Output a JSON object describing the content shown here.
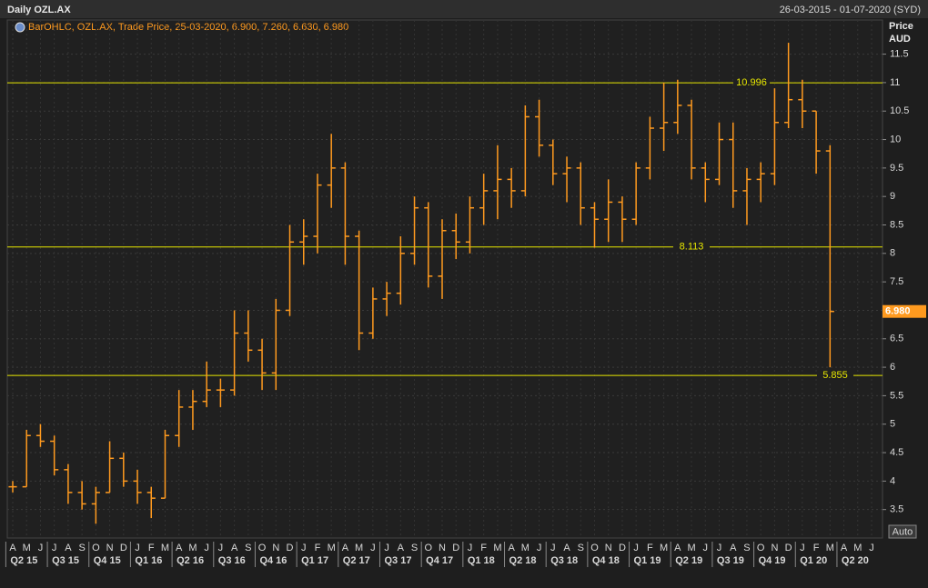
{
  "chart_data": {
    "type": "ohlc",
    "title": "Daily OZL.AX",
    "date_range": "26-03-2015 - 01-07-2020 (SYD)",
    "legend_text": "BarOHLC, OZL.AX, Trade Price, 25-03-2020, 6.900, 7.260, 6.630, 6.980",
    "y_label_line1": "Price",
    "y_label_line2": "AUD",
    "auto_button": "Auto",
    "color": "#ff9a1f",
    "categories": [
      "A",
      "M",
      "J",
      "J",
      "A",
      "S",
      "O",
      "N",
      "D",
      "J",
      "F",
      "M",
      "A",
      "M",
      "J",
      "J",
      "A",
      "S",
      "O",
      "N",
      "D",
      "J",
      "F",
      "M",
      "A",
      "M",
      "J",
      "J",
      "A",
      "S",
      "O",
      "N",
      "D",
      "J",
      "F",
      "M",
      "A",
      "M",
      "J",
      "J",
      "A",
      "S",
      "O",
      "N",
      "D",
      "J",
      "F",
      "M",
      "A",
      "M",
      "J",
      "J",
      "A",
      "S",
      "O",
      "N",
      "D",
      "J",
      "F",
      "M",
      "A",
      "M",
      "J"
    ],
    "quarters": [
      "Q2 15",
      "Q3 15",
      "Q4 15",
      "Q1 16",
      "Q2 16",
      "Q3 16",
      "Q4 16",
      "Q1 17",
      "Q2 17",
      "Q3 17",
      "Q4 17",
      "Q1 18",
      "Q2 18",
      "Q3 18",
      "Q4 18",
      "Q1 19",
      "Q2 19",
      "Q3 19",
      "Q4 19",
      "Q1 20",
      "Q2 20"
    ],
    "open": [
      3.9,
      3.9,
      4.8,
      4.7,
      4.2,
      3.8,
      3.6,
      3.8,
      4.4,
      4.0,
      3.8,
      3.7,
      4.8,
      5.3,
      5.4,
      5.6,
      5.6,
      6.6,
      6.3,
      5.9,
      7.0,
      8.2,
      8.3,
      9.2,
      9.5,
      8.3,
      6.6,
      7.2,
      7.3,
      8.0,
      8.8,
      7.6,
      8.4,
      8.2,
      8.8,
      9.1,
      9.3,
      9.1,
      10.4,
      9.9,
      9.4,
      9.5,
      8.8,
      8.6,
      8.9,
      8.6,
      9.5,
      10.2,
      10.3,
      10.6,
      9.5,
      9.3,
      10.0,
      9.1,
      9.3,
      9.4,
      10.3,
      10.7,
      10.5,
      9.8,
      null,
      null,
      null
    ],
    "high": [
      4.0,
      4.9,
      5.0,
      4.8,
      4.3,
      4.0,
      3.9,
      4.7,
      4.5,
      4.2,
      3.9,
      4.9,
      5.6,
      5.6,
      6.1,
      5.8,
      7.0,
      7.0,
      6.5,
      7.2,
      8.5,
      8.6,
      9.4,
      10.1,
      9.6,
      8.4,
      7.4,
      7.5,
      8.3,
      9.0,
      8.9,
      8.6,
      8.7,
      9.0,
      9.4,
      9.9,
      9.5,
      10.6,
      10.7,
      10.0,
      9.7,
      9.6,
      8.9,
      9.3,
      9.0,
      9.6,
      10.4,
      11.0,
      11.05,
      10.7,
      9.6,
      10.3,
      10.3,
      9.5,
      9.6,
      10.9,
      11.7,
      11.05,
      10.5,
      9.9,
      null,
      null,
      null
    ],
    "low": [
      3.8,
      3.9,
      4.6,
      4.1,
      3.6,
      3.5,
      3.25,
      3.8,
      3.9,
      3.6,
      3.35,
      3.7,
      4.6,
      4.9,
      5.3,
      5.3,
      5.5,
      6.1,
      5.6,
      5.6,
      6.9,
      7.8,
      8.0,
      8.8,
      7.8,
      6.3,
      6.5,
      6.9,
      7.1,
      7.8,
      7.4,
      7.2,
      7.9,
      8.0,
      8.5,
      8.6,
      8.8,
      9.0,
      9.7,
      9.2,
      8.9,
      8.5,
      8.1,
      8.2,
      8.2,
      8.5,
      9.3,
      9.8,
      10.1,
      9.3,
      8.9,
      9.2,
      8.8,
      8.5,
      8.9,
      9.2,
      10.2,
      10.2,
      9.4,
      6.0,
      null,
      null,
      null
    ],
    "close": [
      3.9,
      4.8,
      4.7,
      4.2,
      3.8,
      3.6,
      3.8,
      4.4,
      4.0,
      3.8,
      3.7,
      4.8,
      5.3,
      5.4,
      5.6,
      5.6,
      6.6,
      6.3,
      5.9,
      7.0,
      8.2,
      8.3,
      9.2,
      9.5,
      8.3,
      6.6,
      7.2,
      7.3,
      8.0,
      8.8,
      7.6,
      8.4,
      8.2,
      8.8,
      9.1,
      9.3,
      9.1,
      10.4,
      9.9,
      9.4,
      9.5,
      8.8,
      8.6,
      8.9,
      8.6,
      9.5,
      10.2,
      10.3,
      10.6,
      9.5,
      9.3,
      10.0,
      9.1,
      9.3,
      9.4,
      10.3,
      10.7,
      10.5,
      9.8,
      6.98,
      null,
      null,
      null
    ],
    "hlines": [
      10.996,
      8.113,
      5.855
    ],
    "hline_color": "#e6e600",
    "last_price": {
      "value": 6.98,
      "label": "6.980"
    },
    "ylim": [
      3.0,
      12.1
    ],
    "yticks": [
      3.5,
      4,
      4.5,
      5,
      5.5,
      6,
      6.5,
      7,
      7.5,
      8,
      8.5,
      9,
      9.5,
      10,
      10.5,
      11,
      11.5
    ],
    "grid": true
  }
}
